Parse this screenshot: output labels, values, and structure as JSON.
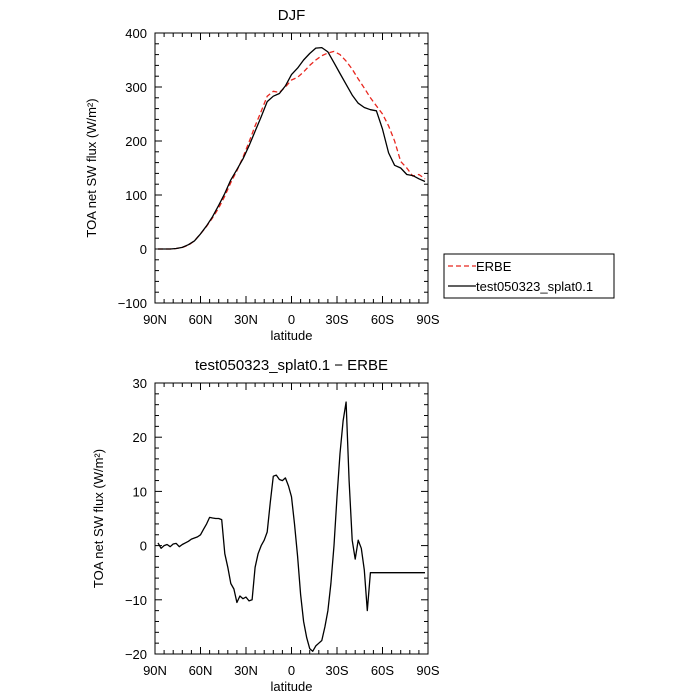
{
  "chart_data": [
    {
      "type": "line",
      "title": "DJF",
      "xlabel": "latitude",
      "ylabel": "TOA net SW flux (W/m²)",
      "xlim": [
        -90,
        90
      ],
      "ylim": [
        -100,
        400
      ],
      "xticks": [
        -90,
        -60,
        -30,
        0,
        30,
        60,
        90
      ],
      "xtick_labels": [
        "90N",
        "60N",
        "30N",
        "0",
        "30S",
        "60S",
        "90S"
      ],
      "yticks": [
        -100,
        0,
        100,
        200,
        300,
        400
      ],
      "ytick_labels": [
        "−100",
        "0",
        "100",
        "200",
        "300",
        "400"
      ],
      "legend": "right",
      "series": [
        {
          "name": "ERBE",
          "color": "#e8261e",
          "dash": "dashed",
          "x": [
            -88,
            -84,
            -80,
            -76,
            -72,
            -68,
            -64,
            -60,
            -56,
            -52,
            -48,
            -44,
            -40,
            -36,
            -32,
            -28,
            -24,
            -20,
            -16,
            -12,
            -8,
            -4,
            0,
            4,
            8,
            12,
            16,
            20,
            24,
            28,
            32,
            36,
            40,
            44,
            48,
            52,
            56,
            60,
            64,
            68,
            72,
            76,
            80,
            84,
            88
          ],
          "values": [
            0,
            0,
            0,
            1,
            3,
            7,
            15,
            28,
            42,
            58,
            76,
            98,
            123,
            145,
            170,
            198,
            228,
            255,
            283,
            292,
            290,
            300,
            313,
            318,
            328,
            340,
            350,
            358,
            363,
            366,
            360,
            348,
            333,
            315,
            298,
            280,
            265,
            250,
            228,
            200,
            162,
            150,
            135,
            138,
            130
          ]
        },
        {
          "name": "test050323_splat0.1",
          "color": "#000000",
          "dash": "solid",
          "x": [
            -88,
            -84,
            -80,
            -76,
            -72,
            -68,
            -64,
            -60,
            -56,
            -52,
            -48,
            -44,
            -40,
            -36,
            -32,
            -28,
            -24,
            -20,
            -16,
            -12,
            -8,
            -4,
            0,
            4,
            8,
            12,
            16,
            20,
            24,
            28,
            32,
            36,
            40,
            44,
            48,
            52,
            56,
            60,
            64,
            68,
            72,
            76,
            80,
            84,
            88
          ],
          "values": [
            0,
            0,
            0,
            1,
            3,
            8,
            15,
            28,
            43,
            60,
            81,
            103,
            128,
            147,
            167,
            191,
            218,
            245,
            273,
            283,
            288,
            302,
            323,
            335,
            350,
            362,
            372,
            373,
            365,
            345,
            325,
            305,
            285,
            270,
            262,
            258,
            256,
            222,
            178,
            155,
            150,
            138,
            136,
            130,
            125
          ]
        }
      ]
    },
    {
      "type": "line",
      "title": "test050323_splat0.1 − ERBE",
      "xlabel": "latitude",
      "ylabel": "TOA net SW flux (W/m²)",
      "xlim": [
        -90,
        90
      ],
      "ylim": [
        -20,
        30
      ],
      "xticks": [
        -90,
        -60,
        -30,
        0,
        30,
        60,
        90
      ],
      "xtick_labels": [
        "90N",
        "60N",
        "30N",
        "0",
        "30S",
        "60S",
        "90S"
      ],
      "yticks": [
        -20,
        -10,
        0,
        10,
        20,
        30
      ],
      "ytick_labels": [
        "−20",
        "−10",
        "0",
        "10",
        "20",
        "30"
      ],
      "series": [
        {
          "color": "#000000",
          "dash": "solid",
          "x": [
            -88,
            -86,
            -84,
            -82,
            -80,
            -78,
            -76,
            -74,
            -72,
            -70,
            -68,
            -66,
            -64,
            -62,
            -60,
            -58,
            -56,
            -54,
            -52,
            -50,
            -48,
            -46,
            -44,
            -42,
            -40,
            -38,
            -36,
            -34,
            -32,
            -30,
            -28,
            -26,
            -24,
            -22,
            -20,
            -18,
            -16,
            -14,
            -12,
            -10,
            -8,
            -6,
            -4,
            -2,
            0,
            2,
            4,
            6,
            8,
            10,
            12,
            14,
            16,
            18,
            20,
            22,
            24,
            26,
            28,
            30,
            32,
            34,
            36,
            38,
            40,
            42,
            44,
            46,
            48,
            50,
            52,
            54,
            56,
            58,
            60,
            62,
            64,
            66,
            68,
            70,
            72,
            74,
            76,
            78,
            80,
            82,
            84,
            86,
            88
          ],
          "values": [
            0.5,
            -0.5,
            0,
            0.2,
            -0.2,
            0.3,
            0.4,
            -0.2,
            0.2,
            0.5,
            0.8,
            1.2,
            1.4,
            1.6,
            2,
            3,
            4,
            5.2,
            5.1,
            5.0,
            5.0,
            4.8,
            -1.5,
            -4,
            -7,
            -8,
            -10.5,
            -9.3,
            -9.8,
            -9.5,
            -10.2,
            -10,
            -4,
            -1.5,
            0,
            1,
            2.5,
            8,
            12.8,
            13,
            12.2,
            12,
            12.5,
            11,
            9,
            4,
            -2,
            -9,
            -14,
            -17,
            -19,
            -19.5,
            -18.5,
            -18,
            -17.5,
            -15,
            -12,
            -7,
            0,
            9,
            17,
            23,
            26.5,
            12,
            1,
            -2.5,
            1,
            -0.5,
            -4.5,
            -12,
            -5,
            -5,
            -5,
            -5,
            -5,
            -5,
            -5,
            -5,
            -5,
            -5,
            -5,
            -5,
            -5,
            -5,
            -5,
            -5,
            -5,
            -5,
            -5
          ]
        }
      ]
    }
  ]
}
